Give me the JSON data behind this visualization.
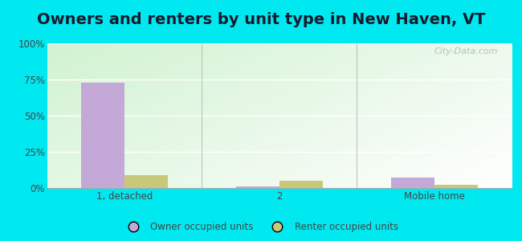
{
  "title": "Owners and renters by unit type in New Haven, VT",
  "categories": [
    "1, detached",
    "2",
    "Mobile home"
  ],
  "owner_values": [
    73,
    1,
    7
  ],
  "renter_values": [
    9,
    5,
    2
  ],
  "owner_color": "#c4a8d8",
  "renter_color": "#c8c87a",
  "ylim": [
    0,
    100
  ],
  "yticks": [
    0,
    25,
    50,
    75,
    100
  ],
  "ytick_labels": [
    "0%",
    "25%",
    "50%",
    "75%",
    "100%"
  ],
  "outer_background": "#00e8f0",
  "title_fontsize": 14,
  "legend_labels": [
    "Owner occupied units",
    "Renter occupied units"
  ],
  "watermark": "City-Data.com",
  "bar_width": 0.28
}
